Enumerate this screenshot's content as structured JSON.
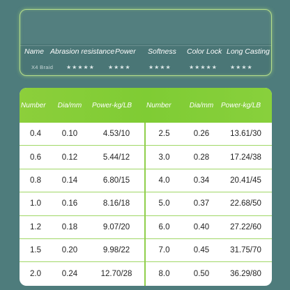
{
  "rating_card": {
    "headers": [
      "Name",
      "Abrasion resistance",
      "Power",
      "Softness",
      "Color Lock",
      "Long Casting"
    ],
    "row": {
      "name": "X4 Braid",
      "abrasion_resistance": "★★★★★",
      "power": "★★★★",
      "softness": "★★★★",
      "color_lock": "★★★★★",
      "long_casting": "★★★★"
    }
  },
  "spec_table": {
    "headers": [
      "Number",
      "Dia/mm",
      "Power-kg/LB",
      "Number",
      "Dia/mm",
      "Power-kg/LB"
    ],
    "rows": [
      [
        "0.4",
        "0.10",
        "4.53/10",
        "2.5",
        "0.26",
        "13.61/30"
      ],
      [
        "0.6",
        "0.12",
        "5.44/12",
        "3.0",
        "0.28",
        "17.24/38"
      ],
      [
        "0.8",
        "0.14",
        "6.80/15",
        "4.0",
        "0.34",
        "20.41/45"
      ],
      [
        "1.0",
        "0.16",
        "8.16/18",
        "5.0",
        "0.37",
        "22.68/50"
      ],
      [
        "1.2",
        "0.18",
        "9.07/20",
        "6.0",
        "0.40",
        "27.22/60"
      ],
      [
        "1.5",
        "0.20",
        "9.98/22",
        "7.0",
        "0.45",
        "31.75/70"
      ],
      [
        "2.0",
        "0.24",
        "12.70/28",
        "8.0",
        "0.50",
        "36.29/80"
      ]
    ]
  },
  "colors": {
    "background": "#4e7c7c",
    "accent_green": "#82cc36",
    "card_border": "#b8e08c"
  }
}
